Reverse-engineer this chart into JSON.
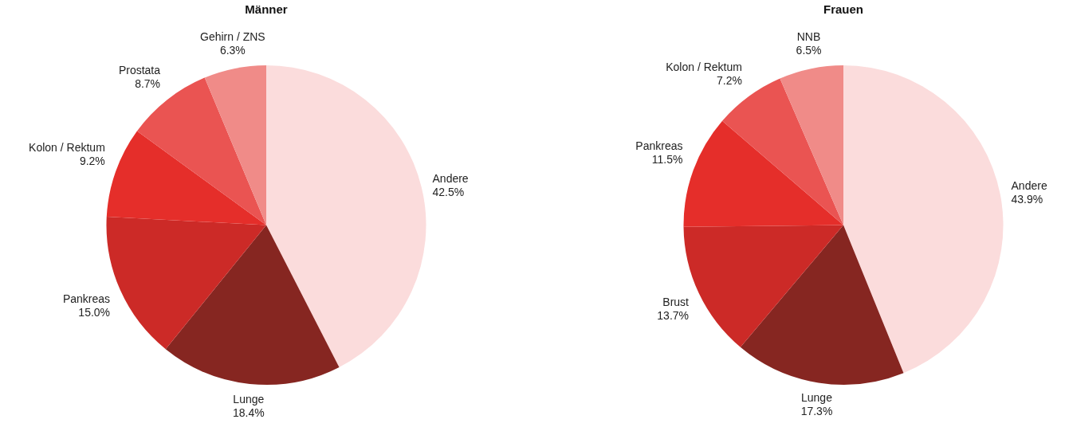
{
  "chart_data": [
    {
      "type": "pie",
      "title": "Männer",
      "categories": [
        "Andere",
        "Lunge",
        "Pankreas",
        "Kolon / Rektum",
        "Prostata",
        "Gehirn / ZNS"
      ],
      "values": [
        42.5,
        18.4,
        15.0,
        9.2,
        8.7,
        6.3
      ],
      "value_labels": [
        "42.5%",
        "18.4%",
        "15.0%",
        "9.2%",
        "8.7%",
        "6.3%"
      ],
      "colors": [
        "#fbdcdc",
        "#862621",
        "#cc2a27",
        "#e52e2a",
        "#ea5452",
        "#f08b88"
      ]
    },
    {
      "type": "pie",
      "title": "Frauen",
      "categories": [
        "Andere",
        "Lunge",
        "Brust",
        "Pankreas",
        "Kolon / Rektum",
        "NNB"
      ],
      "values": [
        43.9,
        17.3,
        13.7,
        11.5,
        7.2,
        6.5
      ],
      "value_labels": [
        "43.9%",
        "17.3%",
        "13.7%",
        "11.5%",
        "7.2%",
        "6.5%"
      ],
      "colors": [
        "#fbdcdc",
        "#862621",
        "#cc2a27",
        "#e52e2a",
        "#ea5452",
        "#f08b88"
      ]
    }
  ]
}
